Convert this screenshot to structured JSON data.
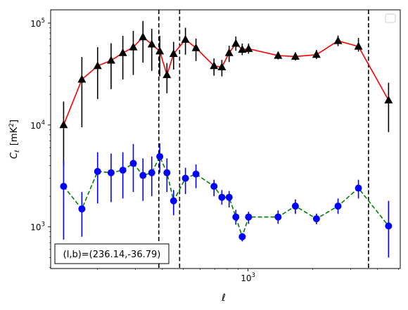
{
  "chart_data": {
    "type": "scatter",
    "xlabel": "ℓ",
    "ylabel_main": "C",
    "ylabel_sub": "ℓ",
    "ylabel_unit": "[mK",
    "ylabel_unit_sup": "2",
    "ylabel_unit_end": "]",
    "xscale": "log",
    "yscale": "log",
    "xlim": [
      121,
      5100
    ],
    "ylim": [
      390,
      135000
    ],
    "x_tick_label": {
      "base": "10",
      "exp": "3",
      "value": 1000
    },
    "y_tick_labels": [
      {
        "base": "10",
        "exp": "3",
        "value": 1000
      },
      {
        "base": "10",
        "exp": "4",
        "value": 10000
      },
      {
        "base": "10",
        "exp": "5",
        "value": 100000
      }
    ],
    "vlines": [
      385,
      481,
      3630
    ],
    "annotation": "(l,b)=(236.14,-36.79)",
    "legend": "top-right, empty",
    "x": [
      139,
      169,
      200,
      231,
      262,
      293,
      325,
      357,
      389,
      420,
      451,
      512,
      573,
      634,
      695,
      756,
      817,
      878,
      940,
      1006,
      1100,
      1240,
      1380,
      1520,
      1660,
      1800,
      2080,
      2320,
      2620,
      2920,
      3260,
      3630,
      4120,
      4500
    ],
    "series": [
      {
        "color": "#ff0000",
        "marker": "triangle",
        "marker_color": "#000000",
        "linestyle": "solid",
        "values": [
          10000,
          28000,
          38000,
          43000,
          51000,
          58000,
          73000,
          62000,
          53000,
          31000,
          50000,
          69000,
          57000,
          38000,
          37000,
          51000,
          63000,
          55000,
          56000,
          48000,
          47000,
          49000,
          67000,
          59000,
          17500
        ],
        "err_low": [
          6000,
          18500,
          20000,
          20500,
          23000,
          27000,
          32000,
          28000,
          23000,
          10500,
          15000,
          20000,
          14500,
          7500,
          7000,
          9500,
          9500,
          6500,
          6000,
          4000,
          4000,
          4500,
          7500,
          6500,
          9000
        ],
        "err_high": [
          7000,
          18500,
          20000,
          20500,
          24000,
          26000,
          32000,
          26000,
          22000,
          9500,
          15500,
          21000,
          13500,
          7000,
          6500,
          9000,
          11000,
          8000,
          7000,
          4500,
          4500,
          5500,
          8500,
          12500,
          8500
        ],
        "x_index": [
          0,
          1,
          2,
          3,
          4,
          5,
          6,
          7,
          8,
          9,
          10,
          11,
          12,
          14,
          15,
          16,
          17,
          18,
          19,
          22,
          24,
          26,
          28,
          30,
          33
        ]
      },
      {
        "color": "#008000",
        "marker": "circle",
        "marker_color": "#0000ff",
        "linestyle": "dashed",
        "values": [
          2500,
          1500,
          3500,
          3400,
          3600,
          4200,
          3200,
          3400,
          4900,
          3400,
          1800,
          3000,
          3300,
          2500,
          1950,
          1950,
          1250,
          800,
          1250,
          1250,
          1600,
          1200,
          1600,
          2400,
          1020
        ],
        "err_low": [
          1750,
          700,
          1800,
          1650,
          1700,
          2000,
          1400,
          1400,
          1500,
          1200,
          500,
          900,
          900,
          500,
          300,
          400,
          200,
          80,
          180,
          180,
          260,
          140,
          260,
          500,
          520
        ],
        "err_high": [
          1900,
          700,
          1900,
          1850,
          1800,
          2300,
          1500,
          1500,
          1700,
          1300,
          500,
          800,
          800,
          400,
          350,
          300,
          220,
          70,
          160,
          200,
          260,
          150,
          300,
          500,
          780
        ],
        "x_index": [
          0,
          1,
          2,
          3,
          4,
          5,
          6,
          7,
          8,
          9,
          10,
          11,
          12,
          14,
          15,
          16,
          17,
          18,
          19,
          22,
          24,
          26,
          28,
          30,
          33
        ]
      }
    ]
  }
}
